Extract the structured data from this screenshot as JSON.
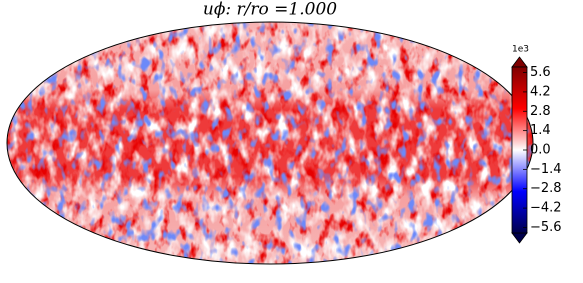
{
  "chart_data": {
    "type": "mollweide",
    "title": "uϕ: r/ro =1.000",
    "colorbar": {
      "offset_label": "1e3",
      "lim": [
        -6.0,
        6.0
      ],
      "ticks": [
        5.6,
        4.2,
        2.8,
        1.4,
        {
          "value": 0,
          "label": "0.0"
        },
        {
          "value": -1.4,
          "label": "−1.4"
        },
        {
          "value": -2.8,
          "label": "−2.8"
        },
        {
          "value": -4.2,
          "label": "−4.2"
        },
        {
          "value": -5.6,
          "label": "−5.6"
        }
      ],
      "colors": [
        "#00004c",
        "#0000ff",
        "#ffffff",
        "#ff0000",
        "#7f0000"
      ]
    }
  }
}
